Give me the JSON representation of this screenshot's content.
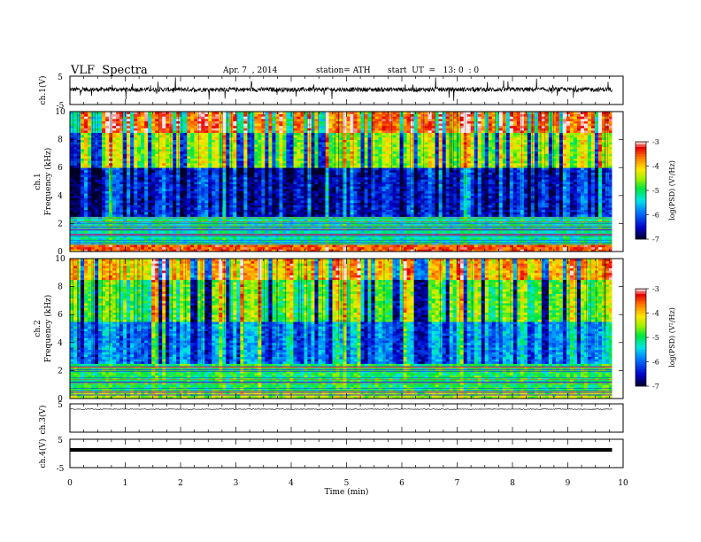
{
  "header": {
    "title": "VLF  Spectra",
    "date": "Apr. 7  , 2014",
    "station": "station= ATH",
    "start": "start  UT  =   13: 0  : 0"
  },
  "chart_data": [
    {
      "type": "line",
      "ylabel": "ch.1(V)",
      "ylim": [
        -5,
        5
      ],
      "ytick_labels": [
        "5",
        "-5"
      ],
      "x_range_min": [
        0,
        9.8
      ],
      "series": [
        {
          "description_level": "noisy trace centered near 0 V with spikes",
          "baseline": 0.3
        }
      ]
    },
    {
      "type": "heatmap",
      "ylabel_top": "ch.1",
      "ylabel": "Frequency (kHz)",
      "ylim": [
        0,
        10
      ],
      "ytick_labels": [
        "0",
        "2",
        "4",
        "6",
        "8",
        "10"
      ],
      "xlim": [
        0,
        10
      ],
      "color_scale": {
        "label": "log(PSD) (V²/Hz)",
        "range": [
          -7,
          -3
        ],
        "tick_labels": [
          "-7",
          "-6",
          "-5",
          "-4",
          "-3"
        ]
      },
      "bands_log_psd": [
        {
          "f_khz": [
            0,
            0.5
          ],
          "level": -3.5
        },
        {
          "f_khz": [
            0.5,
            2.5
          ],
          "level": -5.2
        },
        {
          "f_khz": [
            2.5,
            6
          ],
          "level": -6.4
        },
        {
          "f_khz": [
            6,
            8.5
          ],
          "level": -4.6
        },
        {
          "f_khz": [
            8.5,
            10
          ],
          "level": -3.6
        }
      ]
    },
    {
      "type": "heatmap",
      "ylabel_top": "ch.2",
      "ylabel": "Frequency (kHz)",
      "ylim": [
        0,
        10
      ],
      "ytick_labels": [
        "0",
        "2",
        "4",
        "6",
        "8",
        "10"
      ],
      "xlim": [
        0,
        10
      ],
      "color_scale": {
        "label": "log(PSD) (V²/Hz)",
        "range": [
          -7,
          -3
        ],
        "tick_labels": [
          "-7",
          "-6",
          "-5",
          "-4",
          "-3"
        ]
      },
      "bands_log_psd": [
        {
          "f_khz": [
            0,
            0.5
          ],
          "level": -4.5
        },
        {
          "f_khz": [
            0.5,
            2.5
          ],
          "level": -5.0
        },
        {
          "f_khz": [
            2.5,
            5.5
          ],
          "level": -6.0
        },
        {
          "f_khz": [
            5.5,
            8.5
          ],
          "level": -5.0
        },
        {
          "f_khz": [
            8.5,
            10
          ],
          "level": -4.2
        }
      ]
    },
    {
      "type": "line",
      "ylabel": "ch.3(V)",
      "ylim": [
        -5,
        5
      ],
      "ytick_labels": [
        "5"
      ],
      "series": [
        {
          "description_level": "flat trace",
          "baseline": 0.0
        }
      ]
    },
    {
      "type": "line",
      "ylabel": "ch.4(V)",
      "ylim": [
        -5,
        5
      ],
      "ytick_labels": [
        "5",
        "-5"
      ],
      "xlabel": "Time  (min)",
      "xlim": [
        0,
        10
      ],
      "xtick_labels": [
        "0",
        "1",
        "2",
        "3",
        "4",
        "5",
        "6",
        "7",
        "8",
        "9",
        "10"
      ],
      "series": [
        {
          "description_level": "thick flat trace",
          "baseline": 0.0
        }
      ]
    }
  ]
}
